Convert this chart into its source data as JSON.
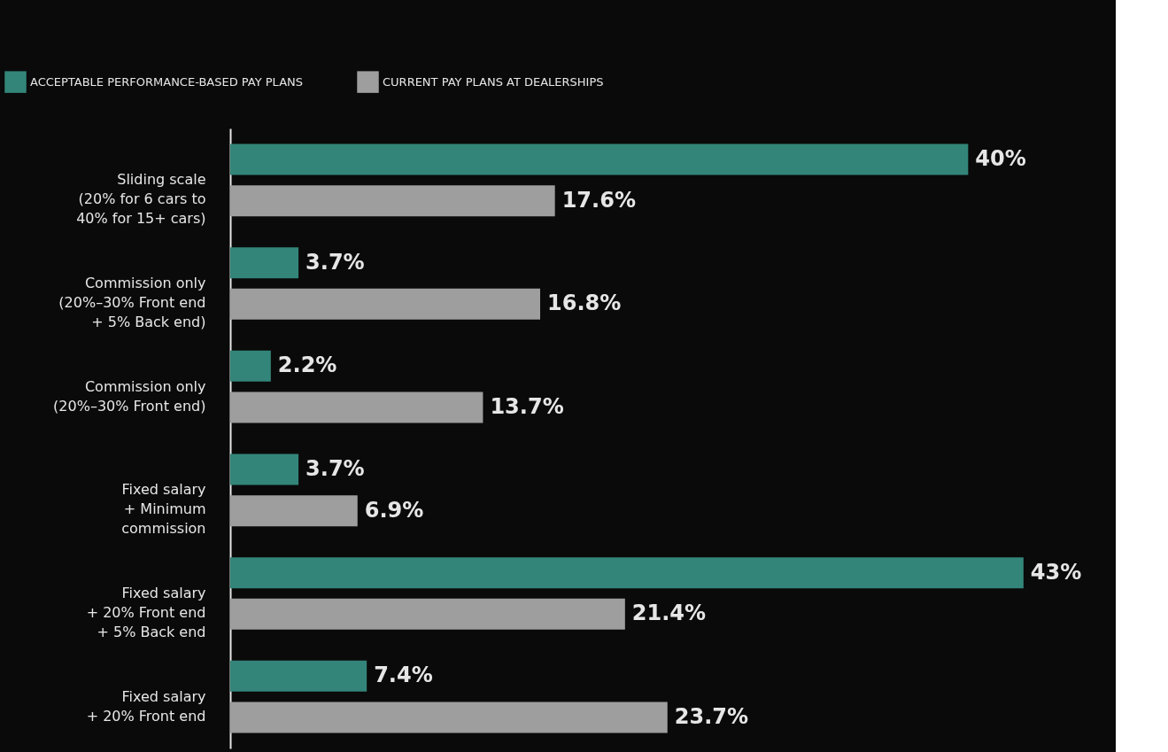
{
  "chart_data": {
    "type": "bar",
    "orientation": "horizontal",
    "categories": [
      "Sliding scale\n(20% for 6 cars to\n40% for 15+ cars)",
      "Commission only\n(20%–30% Front end\n+ 5% Back end)",
      "Commission only\n(20%–30% Front end)",
      "Fixed salary\n+ Minimum\ncommission",
      "Fixed salary\n+ 20% Front end\n+ 5% Back end",
      "Fixed salary\n+ 20% Front end"
    ],
    "series": [
      {
        "name": "ACCEPTABLE PERFORMANCE-BASED PAY PLANS",
        "color": "#338579",
        "values": [
          40,
          3.7,
          2.2,
          3.7,
          43,
          7.4
        ],
        "value_labels": [
          "40%",
          "3.7%",
          "2.2%",
          "3.7%",
          "43%",
          "7.4%"
        ]
      },
      {
        "name": "CURRENT PAY PLANS AT DEALERSHIPS",
        "color": "#9e9e9e",
        "values": [
          17.6,
          16.8,
          13.7,
          6.9,
          21.4,
          23.7
        ],
        "value_labels": [
          "17.6%",
          "16.8%",
          "13.7%",
          "6.9%",
          "21.4%",
          "23.7%"
        ]
      }
    ],
    "xlim": [
      0,
      48
    ],
    "tick_labels": "y",
    "legend": "top left"
  }
}
